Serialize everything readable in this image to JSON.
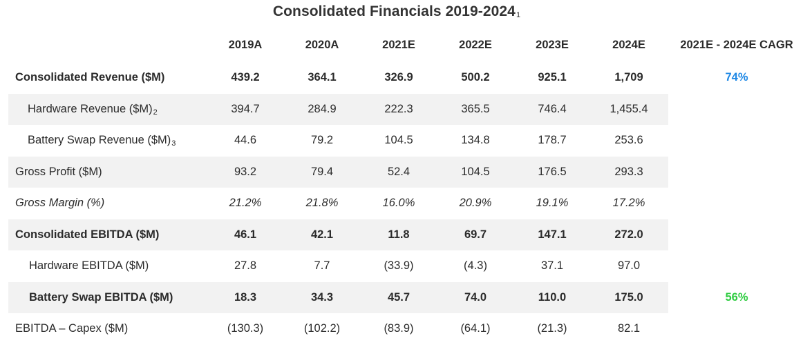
{
  "title": "Consolidated Financials 2019-2024",
  "title_footnote": "1",
  "columns": [
    "2019A",
    "2020A",
    "2021E",
    "2022E",
    "2023E",
    "2024E",
    "2021E - 2024E CAGR"
  ],
  "rows": [
    {
      "label": "Consolidated Revenue ($M)",
      "footnote": "",
      "values": [
        "439.2",
        "364.1",
        "326.9",
        "500.2",
        "925.1",
        "1,709"
      ],
      "cagr": "74%"
    },
    {
      "label": "Hardware Revenue ($M)",
      "footnote": "2",
      "values": [
        "394.7",
        "284.9",
        "222.3",
        "365.5",
        "746.4",
        "1,455.4"
      ],
      "cagr": ""
    },
    {
      "label": "Battery Swap Revenue ($M)",
      "footnote": "3",
      "values": [
        "44.6",
        "79.2",
        "104.5",
        "134.8",
        "178.7",
        "253.6"
      ],
      "cagr": ""
    },
    {
      "label": "Gross Profit ($M)",
      "footnote": "",
      "values": [
        "93.2",
        "79.4",
        "52.4",
        "104.5",
        "176.5",
        "293.3"
      ],
      "cagr": ""
    },
    {
      "label": "Gross Margin (%)",
      "footnote": "",
      "values": [
        "21.2%",
        "21.8%",
        "16.0%",
        "20.9%",
        "19.1%",
        "17.2%"
      ],
      "cagr": ""
    },
    {
      "label": "Consolidated EBITDA ($M)",
      "footnote": "",
      "values": [
        "46.1",
        "42.1",
        "11.8",
        "69.7",
        "147.1",
        "272.0"
      ],
      "cagr": ""
    },
    {
      "label": "Hardware EBITDA ($M)",
      "footnote": "",
      "values": [
        "27.8",
        "7.7",
        "(33.9)",
        "(4.3)",
        "37.1",
        "97.0"
      ],
      "cagr": ""
    },
    {
      "label": "Battery Swap EBITDA ($M)",
      "footnote": "",
      "values": [
        "18.3",
        "34.3",
        "45.7",
        "74.0",
        "110.0",
        "175.0"
      ],
      "cagr": "56%"
    },
    {
      "label": "EBITDA – Capex ($M)",
      "footnote": "",
      "values": [
        "(130.3)",
        "(102.2)",
        "(83.9)",
        "(64.1)",
        "(21.3)",
        "82.1"
      ],
      "cagr": ""
    }
  ],
  "colors": {
    "cagr_revenue": "#1e88e5",
    "cagr_battery": "#2ecc40",
    "row_shade": "#f2f2f2"
  }
}
